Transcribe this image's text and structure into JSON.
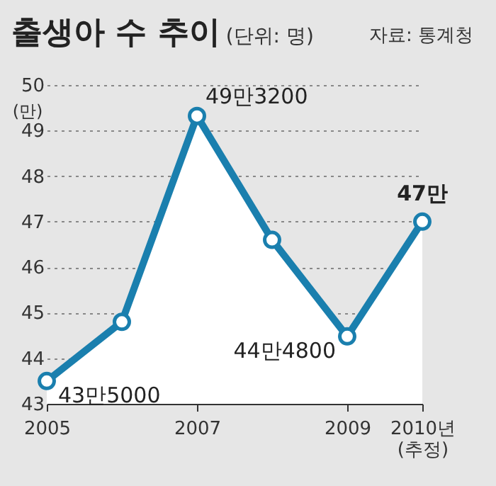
{
  "chart_data": {
    "type": "area",
    "title": "출생아 수 추이",
    "subtitle": "(단위: 명)",
    "annotations": [
      "자료: 통계청"
    ],
    "ylabel": "(만)",
    "x": [
      2005,
      2006,
      2007,
      2008,
      2009,
      2010
    ],
    "series": [
      {
        "color": "#1a7fae",
        "values": [
          43.5,
          44.8,
          49.32,
          46.6,
          44.48,
          47
        ],
        "value_labels": [
          "43만5000",
          null,
          "49만3200",
          null,
          "44만4800",
          "47만"
        ]
      }
    ],
    "xlim": [
      2005,
      2010
    ],
    "xticks": [
      2005,
      2007,
      2009,
      {
        "value": 2010,
        "label": "2010년 (추정)"
      }
    ],
    "ylim": [
      43,
      50
    ],
    "yticks": [
      43,
      44,
      45,
      46,
      47,
      48,
      49,
      50
    ],
    "grid": "y",
    "marker": "circle",
    "line_style": "solid"
  }
}
